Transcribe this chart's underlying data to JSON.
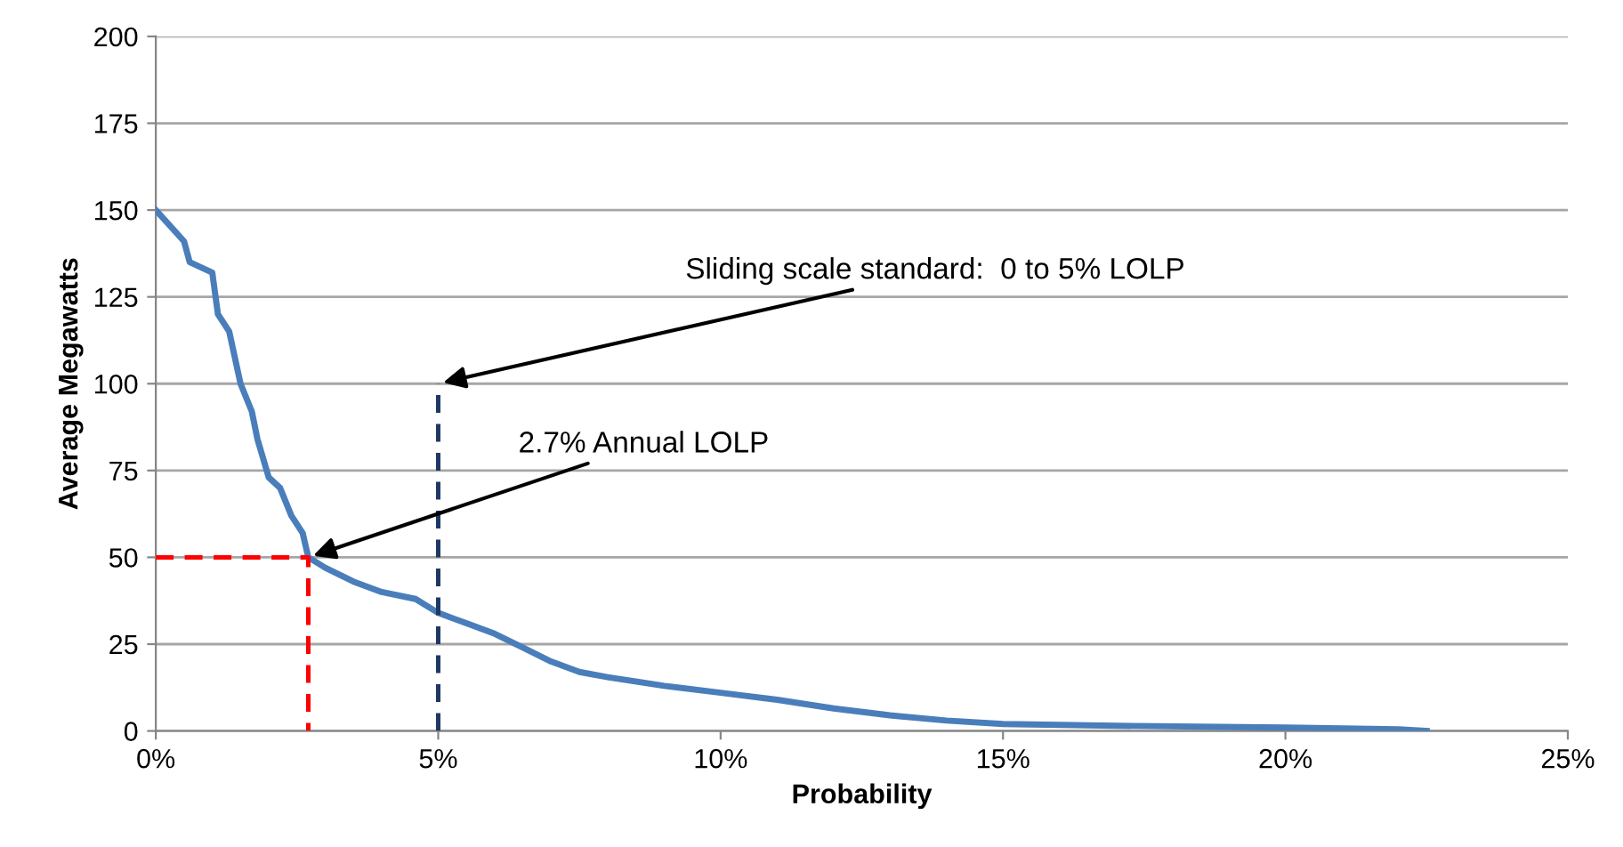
{
  "chart_data": {
    "type": "line",
    "xlabel": "Probability",
    "ylabel": "Average Megawatts",
    "xlim": [
      0,
      25
    ],
    "ylim": [
      0,
      200
    ],
    "xticks": [
      {
        "value": 0,
        "label": "0%"
      },
      {
        "value": 5,
        "label": "5%"
      },
      {
        "value": 10,
        "label": "10%"
      },
      {
        "value": 15,
        "label": "15%"
      },
      {
        "value": 20,
        "label": "20%"
      },
      {
        "value": 25,
        "label": "25%"
      }
    ],
    "yticks": [
      0,
      25,
      50,
      75,
      100,
      125,
      150,
      175,
      200
    ],
    "grid": "y",
    "legend": false,
    "series": [
      {
        "color": "#4a7ebb",
        "line_style": "solid",
        "x": [
          0,
          0.5,
          0.6,
          1.0,
          1.1,
          1.3,
          1.5,
          1.7,
          1.8,
          2.0,
          2.2,
          2.4,
          2.6,
          2.7,
          3.0,
          3.5,
          4.0,
          4.6,
          5.0,
          5.5,
          6.0,
          6.5,
          7.0,
          7.5,
          8,
          9,
          10,
          11,
          12,
          13,
          14,
          15,
          17,
          20,
          22,
          22.5
        ],
        "values": [
          150,
          141,
          135,
          132,
          120,
          115,
          100,
          92,
          84,
          73,
          70,
          62,
          57,
          50,
          47,
          43,
          40,
          38,
          34,
          31,
          28,
          24,
          20,
          17,
          15.5,
          13,
          11,
          9,
          6.5,
          4.5,
          3,
          2,
          1.5,
          1,
          0.5,
          0
        ]
      },
      {
        "color": "#ff0000",
        "line_style": "dashed",
        "x": [
          0,
          2.7,
          2.7
        ],
        "values": [
          50,
          50,
          0
        ]
      },
      {
        "color": "#1f3864",
        "line_style": "dashed",
        "x": [
          5,
          5
        ],
        "values": [
          0,
          100
        ]
      }
    ],
    "annotations": [
      {
        "text": "Sliding scale standard:  0 to 5% LOLP",
        "x": 5,
        "y": 100
      },
      {
        "text": "2.7% Annual LOLP",
        "x": 2.7,
        "y": 50
      }
    ]
  }
}
